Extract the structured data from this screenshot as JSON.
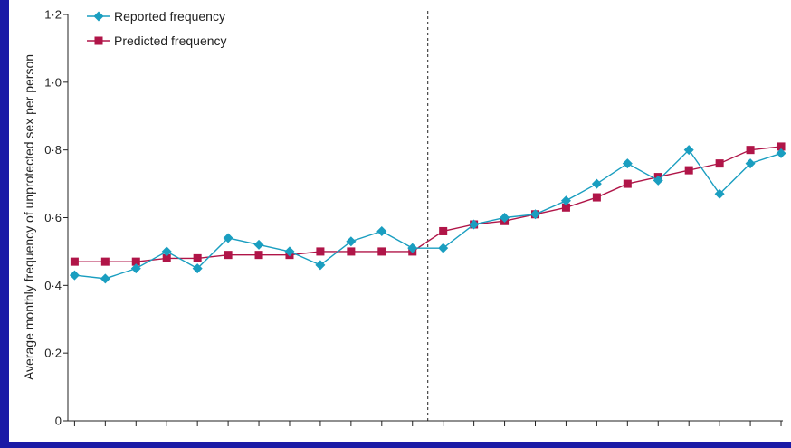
{
  "chart_data": {
    "type": "line",
    "title": "",
    "xlabel": "",
    "ylabel": "Average monthly frequency of unprotected sex per person",
    "ylim": [
      0,
      1.2
    ],
    "yticks": [
      0,
      0.2,
      0.4,
      0.6,
      0.8,
      1.0,
      1.2
    ],
    "ytick_labels": [
      "0",
      "0·2",
      "0·4",
      "0·6",
      "0·8",
      "1·0",
      "1·2"
    ],
    "x": [
      1,
      2,
      3,
      4,
      5,
      6,
      7,
      8,
      9,
      10,
      11,
      12,
      13,
      14,
      15,
      16,
      17,
      18,
      19,
      20,
      21,
      22,
      23,
      24
    ],
    "x_tick_count": 24,
    "vertical_reference_line_between": [
      12,
      13
    ],
    "legend_position": "top-left",
    "grid": false,
    "series": [
      {
        "name": "Reported frequency",
        "color": "#1a9ec0",
        "marker": "diamond",
        "values": [
          0.43,
          0.42,
          0.45,
          0.5,
          0.45,
          0.54,
          0.52,
          0.5,
          0.46,
          0.53,
          0.56,
          0.51,
          0.51,
          0.58,
          0.6,
          0.61,
          0.65,
          0.7,
          0.76,
          0.71,
          0.8,
          0.67,
          0.76,
          0.79
        ]
      },
      {
        "name": "Predicted frequency",
        "color": "#b01548",
        "marker": "square",
        "values": [
          0.47,
          0.47,
          0.47,
          0.48,
          0.48,
          0.49,
          0.49,
          0.49,
          0.5,
          0.5,
          0.5,
          0.5,
          0.56,
          0.58,
          0.59,
          0.61,
          0.63,
          0.66,
          0.7,
          0.72,
          0.74,
          0.76,
          0.8,
          0.81
        ]
      }
    ]
  }
}
